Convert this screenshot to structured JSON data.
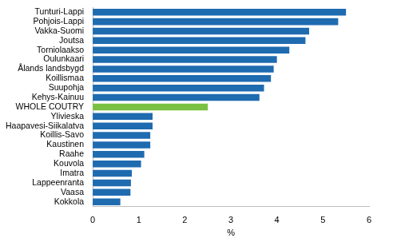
{
  "chart_data": {
    "type": "bar",
    "orientation": "horizontal",
    "x_label": "%",
    "categories": [
      "Tunturi-Lappi",
      "Pohjois-Lappi",
      "Vakka-Suomi",
      "Joutsa",
      "Torniolaakso",
      "Oulunkaari",
      "Ålands landsbygd",
      "Koillismaa",
      "Suupohja",
      "Kehys-Kainuu",
      "WHOLE COUTRY",
      "Ylivieska",
      "Haapavesi-Siikalatva",
      "Koillis-Savo",
      "Kaustinen",
      "Raahe",
      "Kouvola",
      "Imatra",
      "Lappeenranta",
      "Vaasa",
      "Kokkola"
    ],
    "values": [
      5.5,
      5.33,
      4.7,
      4.62,
      4.27,
      4.0,
      3.93,
      3.87,
      3.72,
      3.62,
      2.5,
      1.3,
      1.3,
      1.25,
      1.25,
      1.12,
      1.05,
      0.85,
      0.83,
      0.82,
      0.6
    ],
    "colors": [
      "#1f6bb0",
      "#1f6bb0",
      "#1f6bb0",
      "#1f6bb0",
      "#1f6bb0",
      "#1f6bb0",
      "#1f6bb0",
      "#1f6bb0",
      "#1f6bb0",
      "#1f6bb0",
      "#7ac143",
      "#1f6bb0",
      "#1f6bb0",
      "#1f6bb0",
      "#1f6bb0",
      "#1f6bb0",
      "#1f6bb0",
      "#1f6bb0",
      "#1f6bb0",
      "#1f6bb0",
      "#1f6bb0"
    ],
    "xlim": [
      0,
      6
    ],
    "xticks": [
      0,
      1,
      2,
      3,
      4,
      5,
      6
    ],
    "grid": false
  }
}
